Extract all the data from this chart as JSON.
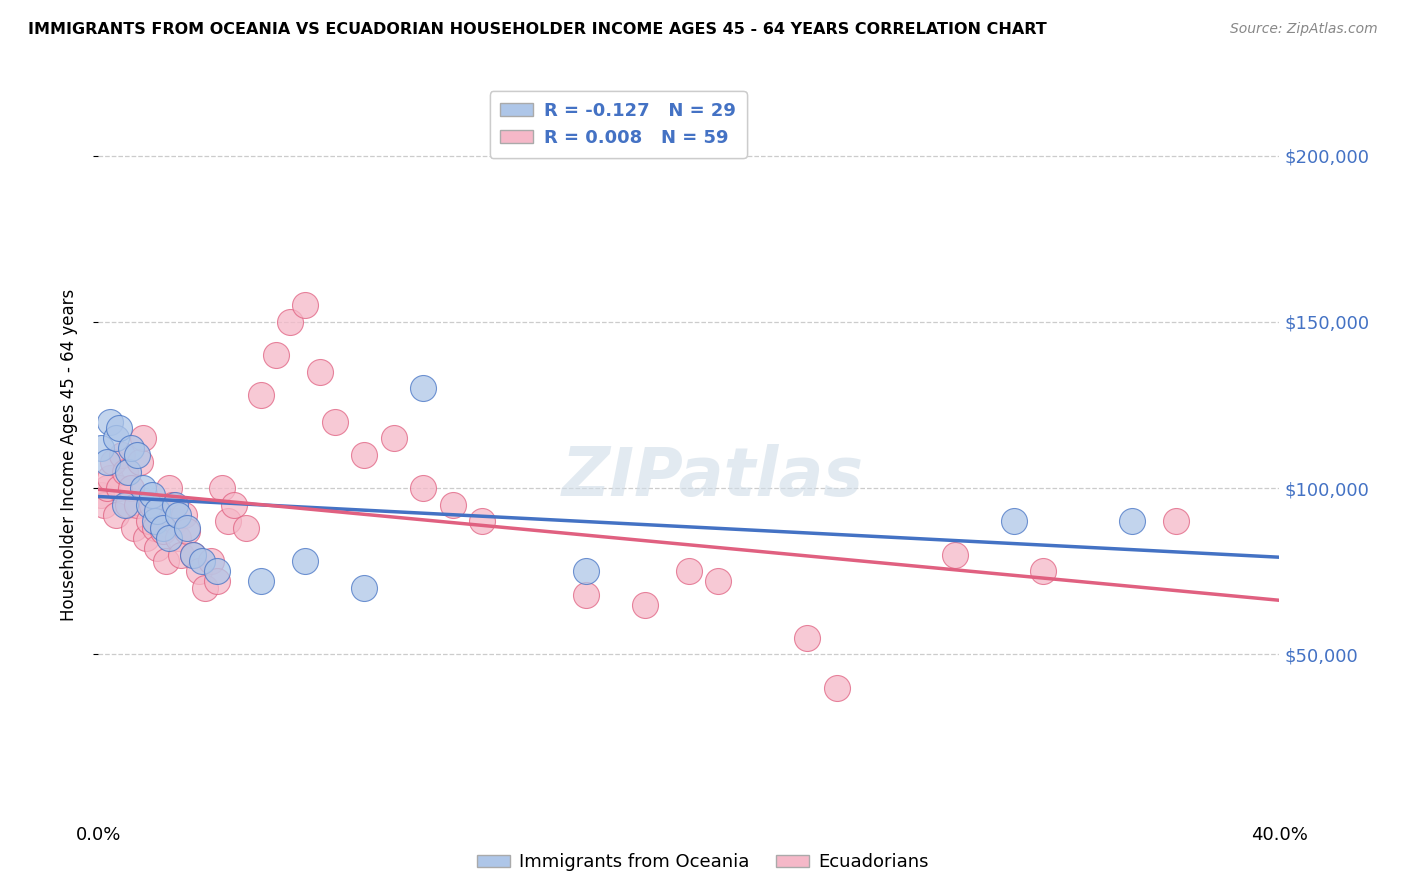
{
  "title": "IMMIGRANTS FROM OCEANIA VS ECUADORIAN HOUSEHOLDER INCOME AGES 45 - 64 YEARS CORRELATION CHART",
  "source": "Source: ZipAtlas.com",
  "ylabel": "Householder Income Ages 45 - 64 years",
  "xlim": [
    0.0,
    0.4
  ],
  "ylim": [
    0,
    220000
  ],
  "yticks": [
    50000,
    100000,
    150000,
    200000
  ],
  "ytick_labels": [
    "$50,000",
    "$100,000",
    "$150,000",
    "$200,000"
  ],
  "xticks": [
    0.0,
    0.05,
    0.1,
    0.15,
    0.2,
    0.25,
    0.3,
    0.35,
    0.4
  ],
  "xtick_labels": [
    "0.0%",
    "",
    "",
    "",
    "",
    "",
    "",
    "",
    "40.0%"
  ],
  "blue_R": -0.127,
  "blue_N": 29,
  "pink_R": 0.008,
  "pink_N": 59,
  "blue_color": "#aec6e8",
  "pink_color": "#f5b8c8",
  "blue_line_color": "#4472c4",
  "pink_line_color": "#e06080",
  "watermark": "ZIPatlas",
  "blue_scatter_x": [
    0.001,
    0.003,
    0.004,
    0.006,
    0.007,
    0.009,
    0.01,
    0.011,
    0.013,
    0.015,
    0.017,
    0.018,
    0.019,
    0.02,
    0.022,
    0.024,
    0.026,
    0.027,
    0.03,
    0.032,
    0.035,
    0.04,
    0.055,
    0.07,
    0.09,
    0.11,
    0.165,
    0.31,
    0.35
  ],
  "blue_scatter_y": [
    112000,
    108000,
    120000,
    115000,
    118000,
    95000,
    105000,
    112000,
    110000,
    100000,
    95000,
    98000,
    90000,
    93000,
    88000,
    85000,
    95000,
    92000,
    88000,
    80000,
    78000,
    75000,
    72000,
    78000,
    70000,
    130000,
    75000,
    90000,
    90000
  ],
  "pink_scatter_x": [
    0.001,
    0.002,
    0.003,
    0.004,
    0.005,
    0.006,
    0.007,
    0.008,
    0.009,
    0.01,
    0.011,
    0.012,
    0.013,
    0.014,
    0.015,
    0.016,
    0.017,
    0.018,
    0.019,
    0.02,
    0.021,
    0.022,
    0.023,
    0.024,
    0.025,
    0.026,
    0.027,
    0.028,
    0.029,
    0.03,
    0.032,
    0.034,
    0.036,
    0.038,
    0.04,
    0.042,
    0.044,
    0.046,
    0.05,
    0.055,
    0.06,
    0.065,
    0.07,
    0.075,
    0.08,
    0.09,
    0.1,
    0.11,
    0.12,
    0.13,
    0.165,
    0.185,
    0.2,
    0.21,
    0.24,
    0.25,
    0.29,
    0.32,
    0.365
  ],
  "pink_scatter_y": [
    98000,
    95000,
    100000,
    103000,
    108000,
    92000,
    100000,
    110000,
    105000,
    95000,
    100000,
    88000,
    95000,
    108000,
    115000,
    85000,
    90000,
    95000,
    88000,
    82000,
    93000,
    87000,
    78000,
    100000,
    95000,
    90000,
    85000,
    80000,
    92000,
    87000,
    80000,
    75000,
    70000,
    78000,
    72000,
    100000,
    90000,
    95000,
    88000,
    128000,
    140000,
    150000,
    155000,
    135000,
    120000,
    110000,
    115000,
    100000,
    95000,
    90000,
    68000,
    65000,
    75000,
    72000,
    55000,
    40000,
    80000,
    75000,
    90000
  ]
}
